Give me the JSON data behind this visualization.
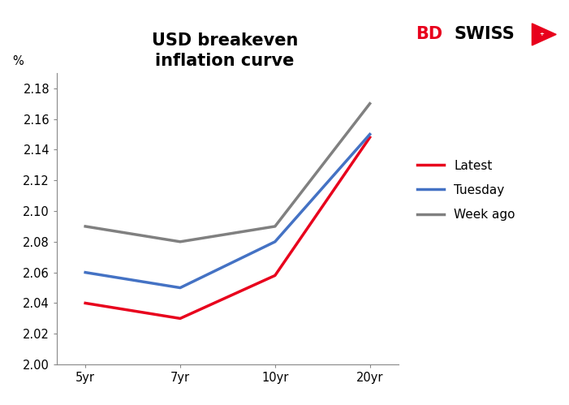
{
  "title": "USD breakeven\ninflation curve",
  "ylabel": "%",
  "x_labels": [
    "5yr",
    "7yr",
    "10yr",
    "20yr"
  ],
  "x_positions": [
    0,
    1,
    2,
    3
  ],
  "series": {
    "Latest": {
      "values": [
        2.04,
        2.03,
        2.058,
        2.148
      ],
      "color": "#e8001c",
      "linewidth": 2.5
    },
    "Tuesday": {
      "values": [
        2.06,
        2.05,
        2.08,
        2.15
      ],
      "color": "#4472c4",
      "linewidth": 2.5
    },
    "Week ago": {
      "values": [
        2.09,
        2.08,
        2.09,
        2.17
      ],
      "color": "#808080",
      "linewidth": 2.5
    }
  },
  "ylim": [
    2.0,
    2.19
  ],
  "yticks": [
    2.0,
    2.02,
    2.04,
    2.06,
    2.08,
    2.1,
    2.12,
    2.14,
    2.16,
    2.18
  ],
  "legend_order": [
    "Latest",
    "Tuesday",
    "Week ago"
  ],
  "bg_color": "#ffffff",
  "plot_bg_color": "#ffffff",
  "spine_color": "#888888",
  "title_fontsize": 15,
  "tick_fontsize": 10.5,
  "legend_fontsize": 11,
  "ylabel_fontsize": 10.5,
  "bd_color": "#e8001c",
  "swiss_color": "#000000",
  "triangle_color": "#e8001c"
}
